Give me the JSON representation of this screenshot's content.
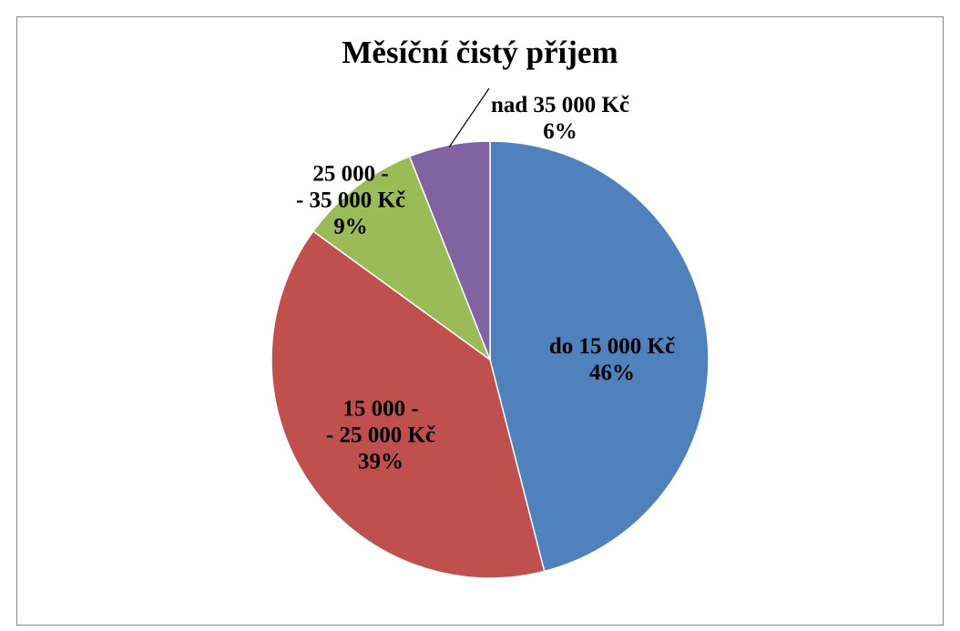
{
  "chart_data": {
    "type": "pie",
    "title": "Měsíční čistý příjem",
    "categories": [
      "do 15 000 Kč",
      "15 000 -\n- 25 000 Kč",
      "25 000 -\n- 35 000 Kč",
      "nad 35 000 Kč"
    ],
    "values": [
      46,
      39,
      9,
      6
    ],
    "value_labels": [
      "46%",
      "39%",
      "9%",
      "6%"
    ],
    "colors": [
      "#4f81bd",
      "#c0504d",
      "#9bbb59",
      "#8064a2"
    ]
  }
}
